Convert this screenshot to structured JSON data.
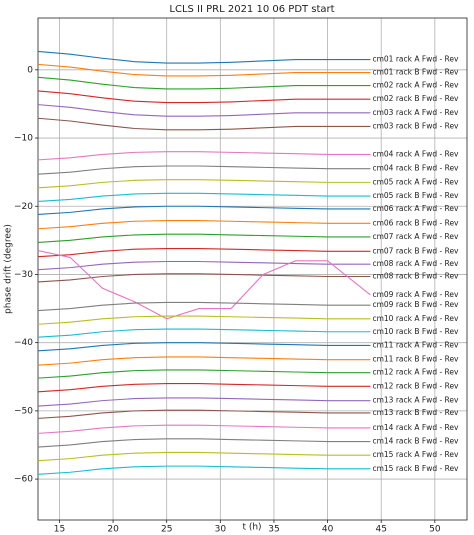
{
  "chart_data": {
    "type": "line",
    "title": "LCLS II PRL 2021 10 06 PDT start",
    "x_label": "t (h)",
    "y_label": "phase drift (degree)",
    "grid": true,
    "xlim": [
      13,
      53
    ],
    "xticks": [
      15,
      20,
      25,
      30,
      35,
      40,
      45,
      50
    ],
    "ylim": [
      -66,
      7.6
    ],
    "yticks": [
      {
        "value": -60,
        "label": "−60"
      },
      {
        "value": -50,
        "label": "−50"
      },
      {
        "value": -40,
        "label": "−40"
      },
      {
        "value": -30,
        "label": "−30"
      },
      {
        "value": -20,
        "label": "−20"
      },
      {
        "value": -10,
        "label": "−10"
      },
      0
    ],
    "x": [
      13,
      16,
      19,
      22,
      25,
      28,
      31,
      34,
      37,
      40,
      44
    ],
    "series": [
      {
        "name": "cm01 rack A Fwd - Rev",
        "color": "#1f77b4",
        "values": [
          2.7,
          2.3,
          1.7,
          1.2,
          1,
          1,
          1.1,
          1.3,
          1.5,
          1.5,
          1.5
        ]
      },
      {
        "name": "cm01 rack B Fwd - Rev",
        "color": "#ff7f0e",
        "values": [
          0.8,
          0.4,
          -0.2,
          -0.7,
          -0.9,
          -0.9,
          -0.8,
          -0.6,
          -0.4,
          -0.4,
          -0.4
        ]
      },
      {
        "name": "cm02 rack A Fwd - Rev",
        "color": "#2ca02c",
        "values": [
          -1.1,
          -1.5,
          -2.1,
          -2.6,
          -2.8,
          -2.8,
          -2.7,
          -2.5,
          -2.3,
          -2.3,
          -2.3
        ]
      },
      {
        "name": "cm02 rack B Fwd - Rev",
        "color": "#d62728",
        "values": [
          -3.1,
          -3.5,
          -4.1,
          -4.6,
          -4.8,
          -4.8,
          -4.7,
          -4.5,
          -4.3,
          -4.3,
          -4.3
        ]
      },
      {
        "name": "cm03 rack A Fwd - Rev",
        "color": "#9467bd",
        "values": [
          -5.1,
          -5.5,
          -6.1,
          -6.6,
          -6.8,
          -6.8,
          -6.7,
          -6.5,
          -6.3,
          -6.3,
          -6.3
        ]
      },
      {
        "name": "cm03 rack B Fwd - Rev",
        "color": "#8c564b",
        "values": [
          -7.1,
          -7.5,
          -8.1,
          -8.6,
          -8.8,
          -8.8,
          -8.7,
          -8.5,
          -8.3,
          -8.3,
          -8.3
        ]
      },
      {
        "name": "cm04 rack A Fwd - Rev",
        "color": "#e377c2",
        "values": [
          -13.2,
          -12.9,
          -12.4,
          -12.1,
          -12,
          -12,
          -12.1,
          -12.2,
          -12.3,
          -12.4,
          -12.4
        ]
      },
      {
        "name": "cm04 rack B Fwd - Rev",
        "color": "#7f7f7f",
        "values": [
          -15.3,
          -15,
          -14.5,
          -14.2,
          -14.1,
          -14.1,
          -14.2,
          -14.3,
          -14.4,
          -14.5,
          -14.5
        ]
      },
      {
        "name": "cm05 rack A Fwd - Rev",
        "color": "#bcbd22",
        "values": [
          -17.3,
          -17,
          -16.5,
          -16.2,
          -16.1,
          -16.1,
          -16.2,
          -16.3,
          -16.4,
          -16.5,
          -16.5
        ]
      },
      {
        "name": "cm05 rack B Fwd - Rev",
        "color": "#17becf",
        "values": [
          -19.3,
          -19,
          -18.5,
          -18.2,
          -18.1,
          -18.1,
          -18.2,
          -18.3,
          -18.4,
          -18.5,
          -18.5
        ]
      },
      {
        "name": "cm06 rack A Fwd - Rev",
        "color": "#1f77b4",
        "values": [
          -21.2,
          -20.9,
          -20.4,
          -20.1,
          -20,
          -20,
          -20.1,
          -20.2,
          -20.3,
          -20.4,
          -20.4
        ]
      },
      {
        "name": "cm06 rack B Fwd - Rev",
        "color": "#ff7f0e",
        "values": [
          -23.3,
          -23,
          -22.5,
          -22.2,
          -22.1,
          -22.1,
          -22.2,
          -22.3,
          -22.4,
          -22.5,
          -22.5
        ]
      },
      {
        "name": "cm07 rack A Fwd - Rev",
        "color": "#2ca02c",
        "values": [
          -25.3,
          -25,
          -24.5,
          -24.2,
          -24.1,
          -24.1,
          -24.2,
          -24.3,
          -24.4,
          -24.5,
          -24.5
        ]
      },
      {
        "name": "cm07 rack B Fwd - Rev",
        "color": "#d62728",
        "values": [
          -27.4,
          -27.1,
          -26.6,
          -26.3,
          -26.2,
          -26.2,
          -26.3,
          -26.4,
          -26.5,
          -26.6,
          -26.6
        ]
      },
      {
        "name": "cm08 rack A Fwd - Rev",
        "color": "#9467bd",
        "values": [
          -29.3,
          -29,
          -28.5,
          -28.2,
          -28.1,
          -28.1,
          -28.2,
          -28.3,
          -28.4,
          -28.5,
          -28.5
        ]
      },
      {
        "name": "cm08 rack B Fwd - Rev",
        "color": "#8c564b",
        "values": [
          -31.1,
          -30.8,
          -30.3,
          -30,
          -29.9,
          -29.9,
          -30,
          -30.1,
          -30.2,
          -30.3,
          -30.3
        ]
      },
      {
        "name": "cm09 rack A Fwd - Rev",
        "color": "#e377c2",
        "values": [
          -26.5,
          -27.5,
          -32,
          -34,
          -36.5,
          -35,
          -35,
          -30,
          -28,
          -28,
          -33
        ]
      },
      {
        "name": "cm09 rack B Fwd - Rev",
        "color": "#7f7f7f",
        "values": [
          -35.3,
          -35,
          -34.5,
          -34.2,
          -34.1,
          -34.1,
          -34.2,
          -34.3,
          -34.4,
          -34.5,
          -34.5
        ]
      },
      {
        "name": "cm10 rack A Fwd - Rev",
        "color": "#bcbd22",
        "values": [
          -37.3,
          -37,
          -36.5,
          -36.2,
          -36.1,
          -36.1,
          -36.2,
          -36.3,
          -36.4,
          -36.5,
          -36.5
        ]
      },
      {
        "name": "cm10 rack B Fwd - Rev",
        "color": "#17becf",
        "values": [
          -39.2,
          -38.9,
          -38.4,
          -38.1,
          -38,
          -38,
          -38.1,
          -38.2,
          -38.3,
          -38.4,
          -38.4
        ]
      },
      {
        "name": "cm11 rack A Fwd - Rev",
        "color": "#1f77b4",
        "values": [
          -41.2,
          -40.9,
          -40.4,
          -40.1,
          -40,
          -40,
          -40.1,
          -40.2,
          -40.3,
          -40.4,
          -40.4
        ]
      },
      {
        "name": "cm11 rack B Fwd - Rev",
        "color": "#ff7f0e",
        "values": [
          -43.3,
          -43,
          -42.5,
          -42.2,
          -42.1,
          -42.1,
          -42.2,
          -42.3,
          -42.4,
          -42.5,
          -42.5
        ]
      },
      {
        "name": "cm12 rack A Fwd - Rev",
        "color": "#2ca02c",
        "values": [
          -45.2,
          -44.9,
          -44.4,
          -44.1,
          -44,
          -44,
          -44.1,
          -44.2,
          -44.3,
          -44.4,
          -44.4
        ]
      },
      {
        "name": "cm12 rack B Fwd - Rev",
        "color": "#d62728",
        "values": [
          -47.2,
          -46.9,
          -46.4,
          -46.1,
          -46,
          -46,
          -46.1,
          -46.2,
          -46.3,
          -46.4,
          -46.4
        ]
      },
      {
        "name": "cm13 rack A Fwd - Rev",
        "color": "#9467bd",
        "values": [
          -49.3,
          -49,
          -48.5,
          -48.2,
          -48.1,
          -48.1,
          -48.2,
          -48.3,
          -48.4,
          -48.5,
          -48.5
        ]
      },
      {
        "name": "cm13 rack B Fwd - Rev",
        "color": "#8c564b",
        "values": [
          -51.1,
          -50.8,
          -50.3,
          -50,
          -49.9,
          -49.9,
          -50,
          -50.1,
          -50.2,
          -50.3,
          -50.3
        ]
      },
      {
        "name": "cm14 rack A Fwd - Rev",
        "color": "#e377c2",
        "values": [
          -53.3,
          -53,
          -52.5,
          -52.2,
          -52.1,
          -52.1,
          -52.2,
          -52.3,
          -52.4,
          -52.5,
          -52.5
        ]
      },
      {
        "name": "cm14 rack B Fwd - Rev",
        "color": "#7f7f7f",
        "values": [
          -55.3,
          -55,
          -54.5,
          -54.2,
          -54.1,
          -54.1,
          -54.2,
          -54.3,
          -54.4,
          -54.5,
          -54.5
        ]
      },
      {
        "name": "cm15 rack A Fwd - Rev",
        "color": "#bcbd22",
        "values": [
          -57.3,
          -57,
          -56.5,
          -56.2,
          -56.1,
          -56.1,
          -56.2,
          -56.3,
          -56.4,
          -56.5,
          -56.5
        ]
      },
      {
        "name": "cm15 rack B Fwd - Rev",
        "color": "#17becf",
        "values": [
          -59.3,
          -59,
          -58.5,
          -58.2,
          -58.1,
          -58.1,
          -58.2,
          -58.3,
          -58.4,
          -58.5,
          -58.5
        ]
      }
    ]
  }
}
